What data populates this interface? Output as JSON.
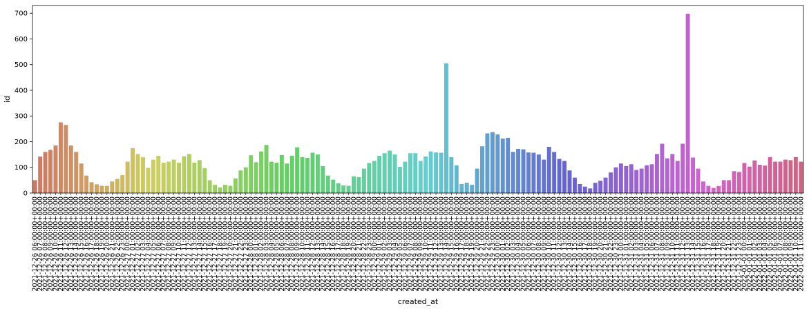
{
  "chart_data": {
    "type": "bar",
    "xlabel": "created_at",
    "ylabel": "id",
    "ylim": [
      0,
      730
    ],
    "yticks": [
      0,
      100,
      200,
      300,
      400,
      500,
      600,
      700
    ],
    "grid": false,
    "legend": "none",
    "palette": "husl-rainbow-desaturated",
    "tick_label_every": 1,
    "categories": [
      "2021-12-26 06:00:00+00:00",
      "2021-12-26 07:00:00+00:00",
      "2021-12-26 08:00:00+00:00",
      "2021-12-26 09:00:00+00:00",
      "2021-12-26 10:00:00+00:00",
      "2021-12-26 11:00:00+00:00",
      "2021-12-26 12:00:00+00:00",
      "2021-12-26 13:00:00+00:00",
      "2021-12-26 14:00:00+00:00",
      "2021-12-26 15:00:00+00:00",
      "2021-12-26 16:00:00+00:00",
      "2021-12-26 17:00:00+00:00",
      "2021-12-26 18:00:00+00:00",
      "2021-12-26 19:00:00+00:00",
      "2021-12-26 20:00:00+00:00",
      "2021-12-26 21:00:00+00:00",
      "2021-12-26 22:00:00+00:00",
      "2021-12-26 23:00:00+00:00",
      "2021-12-27 00:00:00+00:00",
      "2021-12-27 01:00:00+00:00",
      "2021-12-27 02:00:00+00:00",
      "2021-12-27 03:00:00+00:00",
      "2021-12-27 04:00:00+00:00",
      "2021-12-27 05:00:00+00:00",
      "2021-12-27 06:00:00+00:00",
      "2021-12-27 07:00:00+00:00",
      "2021-12-27 08:00:00+00:00",
      "2021-12-27 09:00:00+00:00",
      "2021-12-27 10:00:00+00:00",
      "2021-12-27 11:00:00+00:00",
      "2021-12-27 12:00:00+00:00",
      "2021-12-27 13:00:00+00:00",
      "2021-12-27 14:00:00+00:00",
      "2021-12-27 15:00:00+00:00",
      "2021-12-27 16:00:00+00:00",
      "2021-12-27 17:00:00+00:00",
      "2021-12-27 18:00:00+00:00",
      "2021-12-27 19:00:00+00:00",
      "2021-12-27 20:00:00+00:00",
      "2021-12-27 21:00:00+00:00",
      "2021-12-27 22:00:00+00:00",
      "2021-12-27 23:00:00+00:00",
      "2021-12-28 00:00:00+00:00",
      "2021-12-28 01:00:00+00:00",
      "2021-12-28 02:00:00+00:00",
      "2021-12-28 03:00:00+00:00",
      "2021-12-28 04:00:00+00:00",
      "2021-12-28 05:00:00+00:00",
      "2021-12-28 06:00:00+00:00",
      "2021-12-28 07:00:00+00:00",
      "2021-12-28 08:00:00+00:00",
      "2021-12-28 09:00:00+00:00",
      "2021-12-28 10:00:00+00:00",
      "2021-12-28 11:00:00+00:00",
      "2021-12-28 12:00:00+00:00",
      "2021-12-28 13:00:00+00:00",
      "2021-12-28 14:00:00+00:00",
      "2021-12-28 15:00:00+00:00",
      "2021-12-28 16:00:00+00:00",
      "2021-12-28 17:00:00+00:00",
      "2021-12-28 18:00:00+00:00",
      "2021-12-28 19:00:00+00:00",
      "2021-12-28 20:00:00+00:00",
      "2021-12-28 21:00:00+00:00",
      "2021-12-28 22:00:00+00:00",
      "2021-12-28 23:00:00+00:00",
      "2021-12-29 00:00:00+00:00",
      "2021-12-29 01:00:00+00:00",
      "2021-12-29 02:00:00+00:00",
      "2021-12-29 03:00:00+00:00",
      "2021-12-29 04:00:00+00:00",
      "2021-12-29 05:00:00+00:00",
      "2021-12-29 06:00:00+00:00",
      "2021-12-29 07:00:00+00:00",
      "2021-12-29 08:00:00+00:00",
      "2021-12-29 09:00:00+00:00",
      "2021-12-29 10:00:00+00:00",
      "2021-12-29 11:00:00+00:00",
      "2021-12-29 12:00:00+00:00",
      "2021-12-29 13:00:00+00:00",
      "2021-12-29 14:00:00+00:00",
      "2021-12-29 15:00:00+00:00",
      "2021-12-29 16:00:00+00:00",
      "2021-12-29 17:00:00+00:00",
      "2021-12-29 18:00:00+00:00",
      "2021-12-29 19:00:00+00:00",
      "2021-12-29 20:00:00+00:00",
      "2021-12-29 21:00:00+00:00",
      "2021-12-29 22:00:00+00:00",
      "2021-12-29 23:00:00+00:00",
      "2021-12-30 00:00:00+00:00",
      "2021-12-30 01:00:00+00:00",
      "2021-12-30 02:00:00+00:00",
      "2021-12-30 03:00:00+00:00",
      "2021-12-30 04:00:00+00:00",
      "2021-12-30 05:00:00+00:00",
      "2021-12-30 06:00:00+00:00",
      "2021-12-30 07:00:00+00:00",
      "2021-12-30 08:00:00+00:00",
      "2021-12-30 09:00:00+00:00",
      "2021-12-30 10:00:00+00:00",
      "2021-12-30 11:00:00+00:00",
      "2021-12-30 12:00:00+00:00",
      "2021-12-30 13:00:00+00:00",
      "2021-12-30 14:00:00+00:00",
      "2021-12-30 15:00:00+00:00",
      "2021-12-30 16:00:00+00:00",
      "2021-12-30 17:00:00+00:00",
      "2021-12-30 18:00:00+00:00",
      "2021-12-30 19:00:00+00:00",
      "2021-12-30 20:00:00+00:00",
      "2021-12-30 21:00:00+00:00",
      "2021-12-30 22:00:00+00:00",
      "2021-12-30 23:00:00+00:00",
      "2021-12-31 00:00:00+00:00",
      "2021-12-31 01:00:00+00:00",
      "2021-12-31 02:00:00+00:00",
      "2021-12-31 03:00:00+00:00",
      "2021-12-31 04:00:00+00:00",
      "2021-12-31 05:00:00+00:00",
      "2021-12-31 06:00:00+00:00",
      "2021-12-31 07:00:00+00:00",
      "2021-12-31 08:00:00+00:00",
      "2021-12-31 09:00:00+00:00",
      "2021-12-31 10:00:00+00:00",
      "2021-12-31 11:00:00+00:00",
      "2021-12-31 12:00:00+00:00",
      "2021-12-31 13:00:00+00:00",
      "2021-12-31 14:00:00+00:00",
      "2021-12-31 15:00:00+00:00",
      "2021-12-31 16:00:00+00:00",
      "2021-12-31 17:00:00+00:00",
      "2021-12-31 18:00:00+00:00",
      "2021-12-31 19:00:00+00:00",
      "2021-12-31 20:00:00+00:00",
      "2021-12-31 21:00:00+00:00",
      "2021-12-31 22:00:00+00:00",
      "2021-12-31 23:00:00+00:00",
      "2022-01-01 00:00:00+00:00",
      "2022-01-01 01:00:00+00:00",
      "2022-01-01 02:00:00+00:00",
      "2022-01-01 03:00:00+00:00",
      "2022-01-01 04:00:00+00:00",
      "2022-01-01 05:00:00+00:00",
      "2022-01-01 06:00:00+00:00",
      "2022-01-01 07:00:00+00:00",
      "2022-01-01 08:00:00+00:00",
      "2022-01-01 09:00:00+00:00",
      "2022-01-01 10:00:00+00:00",
      "2022-01-01 11:00:00+00:00"
    ],
    "values": [
      50,
      142,
      160,
      168,
      185,
      275,
      265,
      185,
      160,
      115,
      68,
      42,
      34,
      28,
      28,
      45,
      55,
      70,
      122,
      175,
      152,
      140,
      98,
      130,
      145,
      118,
      122,
      130,
      118,
      143,
      152,
      118,
      128,
      97,
      50,
      32,
      22,
      32,
      28,
      57,
      88,
      100,
      147,
      120,
      162,
      187,
      122,
      118,
      148,
      115,
      145,
      178,
      140,
      137,
      157,
      150,
      105,
      68,
      52,
      38,
      30,
      28,
      65,
      62,
      95,
      117,
      125,
      145,
      155,
      165,
      150,
      102,
      122,
      155,
      155,
      125,
      142,
      162,
      158,
      157,
      505,
      140,
      108,
      35,
      40,
      32,
      95,
      182,
      232,
      237,
      228,
      212,
      215,
      160,
      172,
      170,
      158,
      157,
      150,
      130,
      180,
      160,
      133,
      125,
      88,
      60,
      35,
      25,
      18,
      40,
      48,
      60,
      80,
      100,
      115,
      105,
      112,
      90,
      95,
      108,
      112,
      152,
      192,
      135,
      152,
      125,
      192,
      698,
      138,
      95,
      45,
      28,
      20,
      27,
      50,
      50,
      85,
      82,
      117,
      103,
      127,
      110,
      107,
      140,
      122,
      122,
      130,
      128,
      140,
      122
    ]
  }
}
